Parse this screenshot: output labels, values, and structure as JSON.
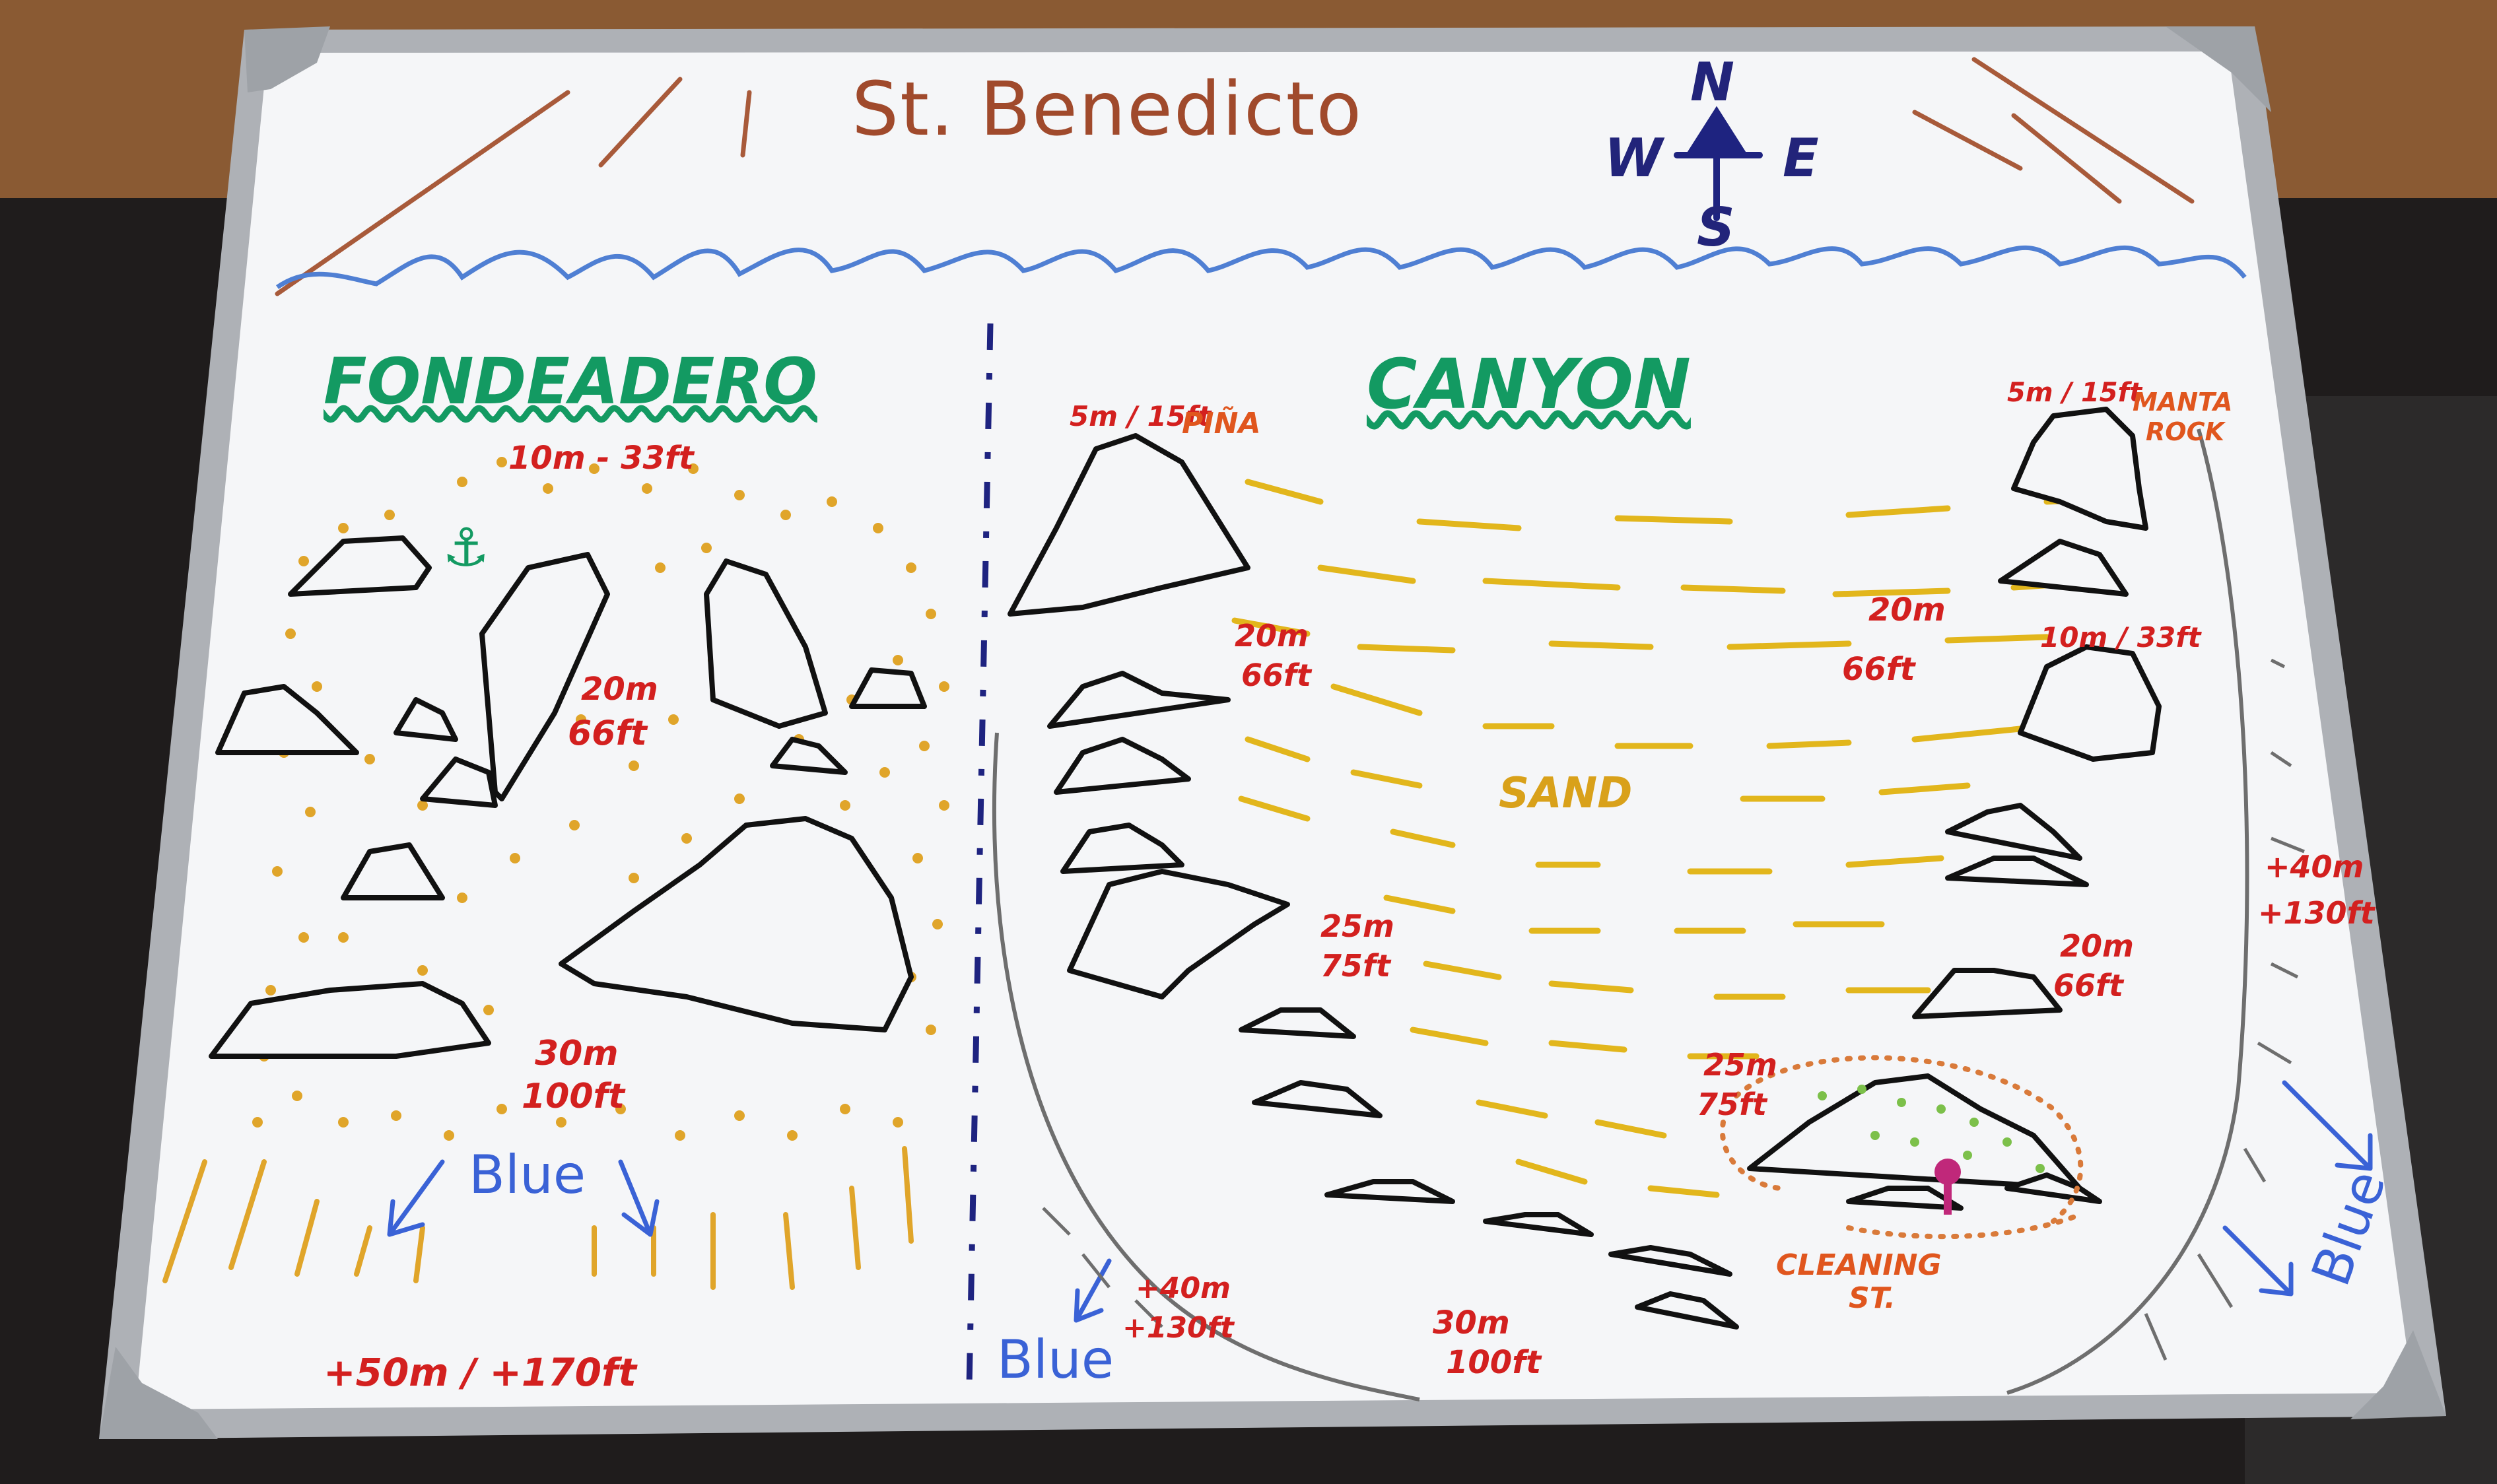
{
  "board": {
    "title": "St. Benedicto",
    "compass": {
      "n": "N",
      "w": "W",
      "e": "E",
      "s": "S"
    }
  },
  "fondeadero": {
    "title": "FONDEADERO",
    "depths": [
      {
        "text": "10m - 33ft"
      },
      {
        "text": "20m"
      },
      {
        "text": "66ft"
      },
      {
        "text": "30m"
      },
      {
        "text": "100ft"
      }
    ],
    "blue_label": "Blue",
    "bottom_depth": "+50m / +170ft"
  },
  "canyon": {
    "title": "CANYON",
    "pina": "PIÑA",
    "pina_depth": "5m / 15ft",
    "manta_rock": [
      "MANTA",
      "ROCK"
    ],
    "manta_depth": "5m / 15ft",
    "sand": "SAND",
    "cleaning_station": [
      "CLEANING",
      "ST."
    ],
    "depths": [
      {
        "text": "20m"
      },
      {
        "text": "66ft"
      },
      {
        "text": "20m"
      },
      {
        "text": "66ft"
      },
      {
        "text": "10m / 33ft"
      },
      {
        "text": "25m"
      },
      {
        "text": "75ft"
      },
      {
        "text": "+40m"
      },
      {
        "text": "+130ft"
      },
      {
        "text": "20m"
      },
      {
        "text": "66ft"
      },
      {
        "text": "25m"
      },
      {
        "text": "75ft"
      },
      {
        "text": "+40m"
      },
      {
        "text": "+130ft"
      },
      {
        "text": "30m"
      },
      {
        "text": "100ft"
      }
    ],
    "blue_left": "Blue",
    "blue_right": "Blue"
  },
  "colors": {
    "board": "#f4f5f7",
    "frame": "#b9bcc0",
    "wave": "#4f7fd3",
    "dots": "#e0a52a",
    "depth_text": "#d3201f"
  }
}
